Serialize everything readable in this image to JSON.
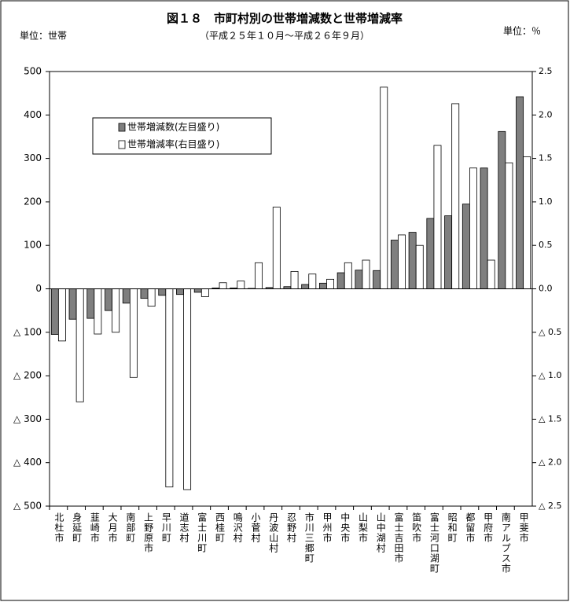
{
  "chart_data": {
    "type": "bar",
    "title": "図１８　市町村別の世帯増減数と世帯増減率",
    "subtitle": "（平成２５年１０月～平成２６年９月）",
    "y_unit": "単位：世帯",
    "y2_unit": "単位：％",
    "categories": [
      "北杜市",
      "身延町",
      "韮崎市",
      "大月市",
      "南部町",
      "上野原市",
      "早川町",
      "道志村",
      "富士川町",
      "西桂町",
      "鳴沢村",
      "小菅村",
      "丹波山村",
      "忍野村",
      "市川三郷町",
      "甲州市",
      "中央市",
      "山梨市",
      "山中湖村",
      "富士吉田市",
      "笛吹市",
      "富士河口湖町",
      "昭和町",
      "都留市",
      "甲府市",
      "南アルプス市",
      "甲斐市"
    ],
    "series": [
      {
        "name": "世帯増減数(左目盛り)",
        "color": "#7f7f7f",
        "values": [
          -105,
          -70,
          -68,
          -50,
          -33,
          -22,
          -15,
          -13,
          -8,
          2,
          2,
          1,
          3,
          5,
          10,
          13,
          37,
          43,
          42,
          112,
          130,
          162,
          168,
          195,
          278,
          362,
          442
        ]
      },
      {
        "name": "世帯増減率(右目盛り)",
        "color": "#ffffff",
        "axis": "y2",
        "values": [
          -0.6,
          -1.3,
          -0.52,
          -0.5,
          -1.02,
          -0.2,
          -2.28,
          -2.31,
          -0.09,
          0.07,
          0.09,
          0.3,
          0.94,
          0.2,
          0.17,
          0.11,
          0.3,
          0.33,
          2.32,
          0.62,
          0.5,
          1.65,
          2.13,
          1.39,
          0.33,
          1.45,
          1.52
        ]
      }
    ],
    "ylim": [
      -500,
      500
    ],
    "yticks": [
      500,
      400,
      300,
      200,
      100,
      0,
      {
        "value": -100,
        "label": "△ 100"
      },
      {
        "value": -200,
        "label": "△ 200"
      },
      {
        "value": -300,
        "label": "△ 300"
      },
      {
        "value": -400,
        "label": "△ 400"
      },
      {
        "value": -500,
        "label": "△ 500"
      }
    ],
    "y2lim": [
      -2.5,
      2.5
    ],
    "y2ticks": [
      2.5,
      {
        "value": 2,
        "label": "2.0"
      },
      1.5,
      {
        "value": 1,
        "label": "1.0"
      },
      0.5,
      {
        "value": 0,
        "label": "0.0"
      },
      {
        "value": -0.5,
        "label": "△ 0.5"
      },
      {
        "value": -1,
        "label": "△ 1.0"
      },
      {
        "value": -1.5,
        "label": "△ 1.5"
      },
      {
        "value": -2,
        "label": "△ 2.0"
      },
      {
        "value": -2.5,
        "label": "△ 2.5"
      }
    ]
  }
}
